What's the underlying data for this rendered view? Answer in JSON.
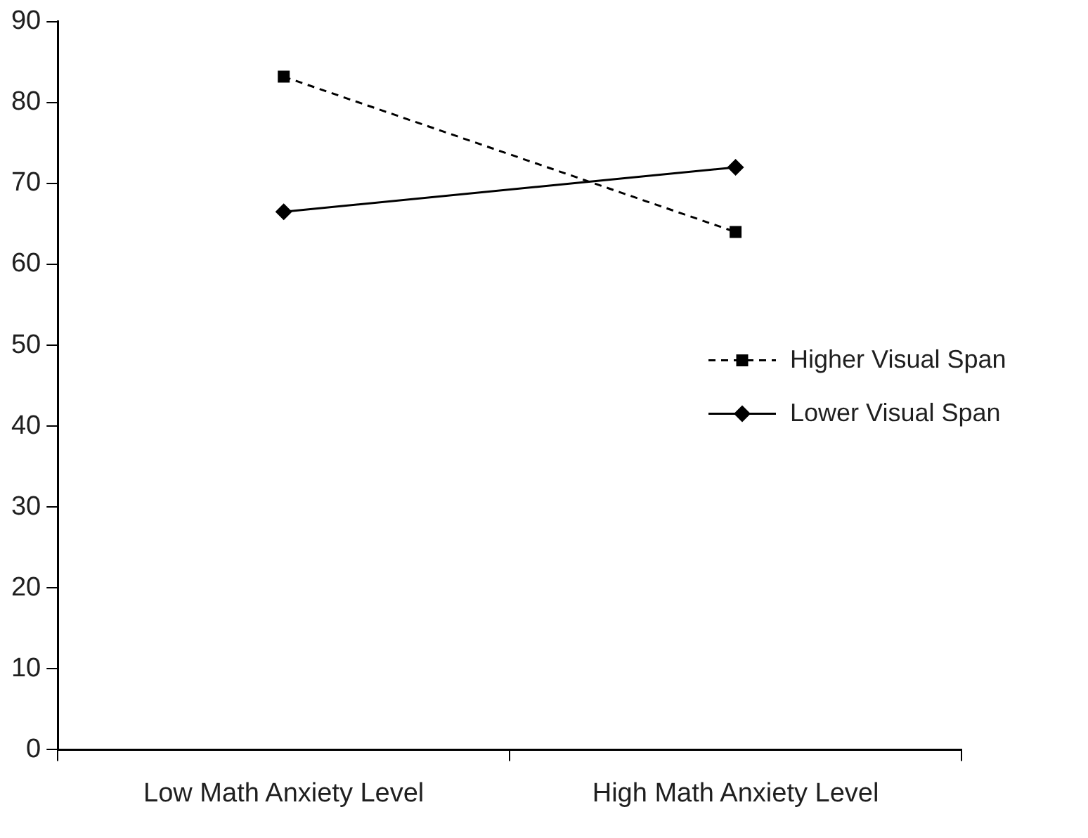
{
  "chart_data": {
    "type": "line",
    "categories": [
      "Low Math Anxiety Level",
      "High Math Anxiety Level"
    ],
    "series": [
      {
        "name": "Higher Visual Span",
        "color": "#000000",
        "values": [
          83.2,
          64
        ],
        "marker": "square",
        "line_style": "dashed"
      },
      {
        "name": "Lower Visual Span",
        "color": "#000000",
        "values": [
          66.5,
          72
        ],
        "marker": "diamond",
        "line_style": "solid"
      }
    ],
    "ylim": [
      0,
      90
    ],
    "yticks": [
      0,
      10,
      20,
      30,
      40,
      50,
      60,
      70,
      80,
      90
    ],
    "grid": false,
    "legend": "right"
  }
}
